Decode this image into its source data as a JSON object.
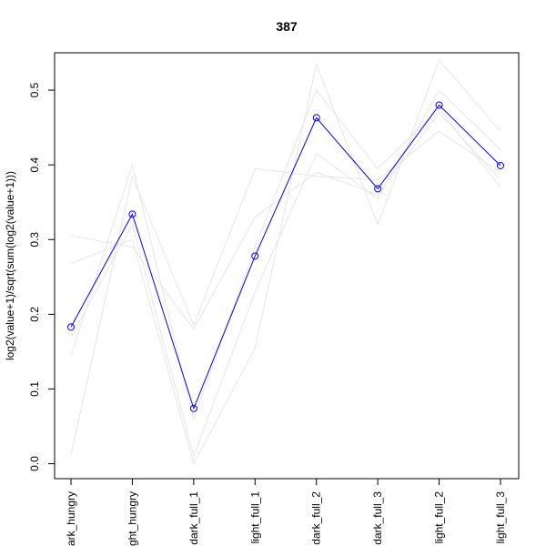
{
  "chart_data": {
    "type": "line",
    "title": "387",
    "xlabel": "",
    "ylabel": "log2(value+1)/sqrt(sum(log2(value+1)))",
    "categories": [
      "dark_hungry",
      "light_hungry",
      "dark_full_1",
      "light_full_1",
      "dark_full_2",
      "dark_full_3",
      "light_full_2",
      "light_full_3"
    ],
    "ylim": [
      -0.02,
      0.55
    ],
    "yticks": [
      0.0,
      0.1,
      0.2,
      0.3,
      0.4,
      0.5
    ],
    "ytick_labels": [
      "0.0",
      "0.1",
      "0.2",
      "0.3",
      "0.4",
      "0.5"
    ],
    "grid": false,
    "legend": "none",
    "highlight": {
      "color": "#0000ff",
      "marker": "open-circle",
      "values": [
        0.183,
        0.334,
        0.074,
        0.278,
        0.463,
        0.368,
        0.48,
        0.399
      ]
    },
    "background_series": {
      "color": "#e6e6e6",
      "series": [
        [
          0.305,
          0.29,
          0.18,
          0.33,
          0.39,
          0.36,
          0.47,
          0.38
        ],
        [
          0.268,
          0.3,
          0.0,
          0.155,
          0.535,
          0.32,
          0.54,
          0.445
        ],
        [
          0.145,
          0.4,
          0.06,
          0.29,
          0.5,
          0.395,
          0.475,
          0.37
        ],
        [
          0.012,
          0.385,
          0.185,
          0.395,
          0.385,
          0.38,
          0.445,
          0.39
        ],
        [
          0.17,
          0.32,
          0.01,
          0.23,
          0.415,
          0.355,
          0.5,
          0.42
        ]
      ]
    }
  }
}
